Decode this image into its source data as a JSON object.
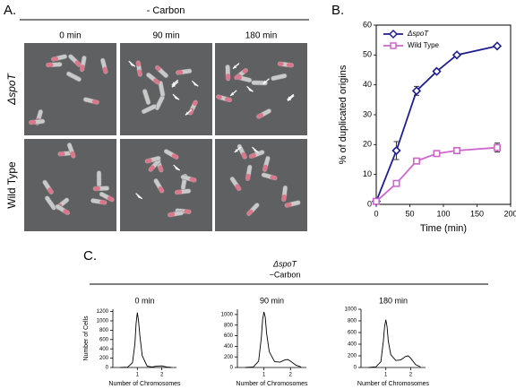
{
  "panel_a": {
    "label": "A.",
    "condition": "- Carbon",
    "columns": [
      "0 min",
      "90 min",
      "180 min"
    ],
    "rows": [
      "ΔspoT",
      "Wild Type"
    ]
  },
  "panel_b": {
    "label": "B."
  },
  "panel_c": {
    "label": "C.",
    "strain": "ΔspoT",
    "condition": "−Carbon"
  },
  "chart_data": [
    {
      "type": "line",
      "x": [
        0,
        30,
        60,
        90,
        120,
        180
      ],
      "xlabel": "Time (min)",
      "ylabel": "% of duplicated origins",
      "xlim": [
        0,
        200
      ],
      "xticks": [
        0,
        50,
        100,
        150,
        200
      ],
      "ylim": [
        0,
        60
      ],
      "yticks": [
        0,
        10,
        20,
        30,
        40,
        50,
        60
      ],
      "legend": "upper left",
      "series": [
        {
          "name": "ΔspoT",
          "color": "#1f1f8f",
          "marker": "diamond",
          "values": [
            1,
            18,
            38,
            44.5,
            50,
            53
          ],
          "errors": [
            0.3,
            3,
            1.5,
            0.7,
            0.5,
            0.5
          ]
        },
        {
          "name": "Wild Type",
          "color": "#cc66cc",
          "marker": "square",
          "values": [
            1,
            7,
            14.5,
            17,
            18,
            19
          ],
          "errors": [
            0.3,
            0.5,
            0.6,
            0.6,
            0.6,
            1.5
          ]
        }
      ]
    },
    {
      "type": "line",
      "title": "0 min",
      "xlabel": "Number of Chromosomes",
      "ylabel": "Number of Cells",
      "color": "#000000",
      "xlim": [
        0,
        2.6
      ],
      "xticks": [
        1,
        2
      ],
      "ylim": [
        0,
        1250
      ],
      "yticks": [
        0,
        200,
        400,
        600,
        800,
        1000,
        1200
      ],
      "x": [
        0.3,
        0.6,
        0.8,
        0.9,
        0.95,
        1.0,
        1.05,
        1.1,
        1.2,
        1.4,
        1.6,
        1.8,
        2.0,
        2.2,
        2.4
      ],
      "values": [
        0,
        5,
        100,
        500,
        950,
        1180,
        1000,
        700,
        250,
        30,
        10,
        30,
        35,
        10,
        0
      ]
    },
    {
      "type": "line",
      "title": "90 min",
      "xlabel": "Number of Chromosomes",
      "color": "#000000",
      "xlim": [
        0,
        2.6
      ],
      "xticks": [
        1,
        2
      ],
      "ylim": [
        0,
        1100
      ],
      "yticks": [
        0,
        200,
        400,
        600,
        800,
        1000
      ],
      "x": [
        0.3,
        0.6,
        0.8,
        0.9,
        0.95,
        1.0,
        1.05,
        1.1,
        1.2,
        1.4,
        1.6,
        1.8,
        1.9,
        2.0,
        2.2,
        2.4
      ],
      "values": [
        0,
        10,
        120,
        550,
        900,
        1050,
        950,
        650,
        300,
        110,
        100,
        145,
        150,
        120,
        45,
        10
      ]
    },
    {
      "type": "line",
      "title": "180 min",
      "xlabel": "Number of Chromosomes",
      "color": "#000000",
      "xlim": [
        0,
        2.6
      ],
      "xticks": [
        1,
        2
      ],
      "ylim": [
        0,
        1000
      ],
      "yticks": [
        0,
        200,
        400,
        600,
        800,
        1000
      ],
      "x": [
        0.3,
        0.6,
        0.8,
        0.9,
        0.95,
        1.0,
        1.05,
        1.1,
        1.2,
        1.4,
        1.6,
        1.8,
        1.9,
        2.0,
        2.2,
        2.4
      ],
      "values": [
        0,
        10,
        100,
        450,
        700,
        820,
        700,
        450,
        220,
        120,
        130,
        190,
        200,
        160,
        50,
        10
      ]
    }
  ]
}
